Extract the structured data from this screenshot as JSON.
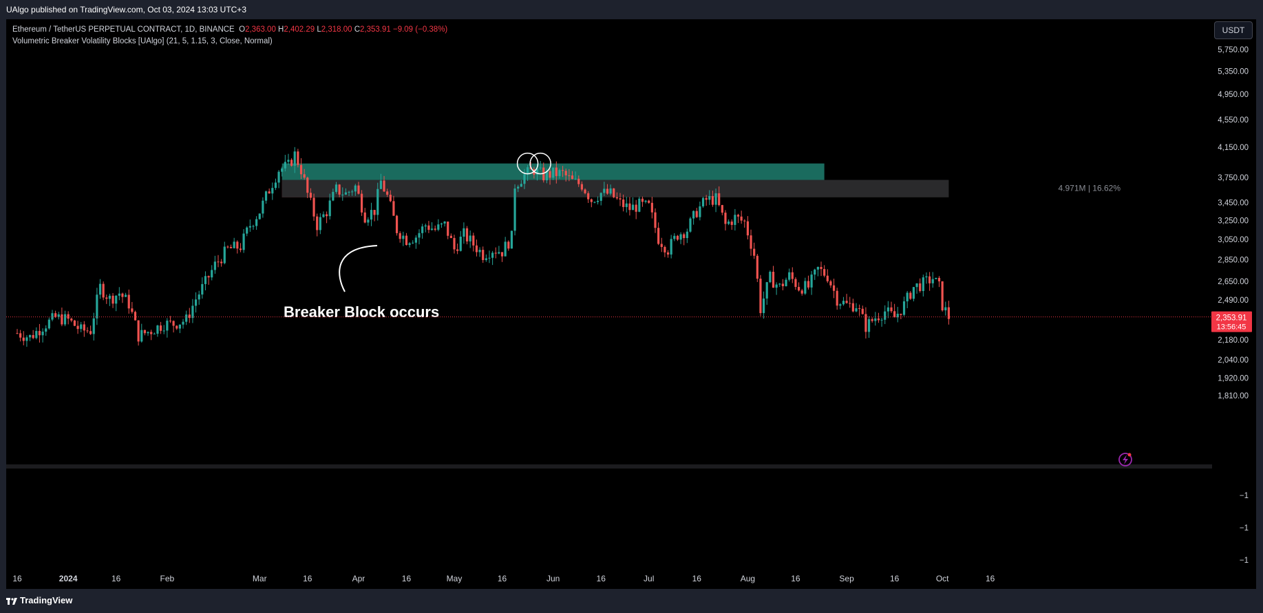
{
  "header": {
    "published_text": "UAlgo published on TradingView.com, Oct 03, 2024 13:03 UTC+3"
  },
  "legend": {
    "symbol": "Ethereum / TetherUS PERPETUAL CONTRACT, 1D, BINANCE",
    "o_label": "O",
    "o_value": "2,363.00",
    "h_label": "H",
    "h_value": "2,402.29",
    "l_label": "L",
    "l_value": "2,318.00",
    "c_label": "C",
    "c_value": "2,353.91",
    "change": "−9.09 (−0.38%)",
    "indicator": "Volumetric Breaker Volatility Blocks [UAlgo] (21, 5, 1.15, 3, Close, Normal)"
  },
  "toolbar": {
    "currency": "USDT"
  },
  "footer": {
    "brand": "TradingView"
  },
  "colors": {
    "up": "#26a69a",
    "down": "#ef5350",
    "teal_block": "#1a6b5e",
    "red_block": "#8f2a33",
    "gray_block": "#2a2a2c",
    "price_tag": "#f23645"
  },
  "chart_data": {
    "type": "candlestick",
    "symbol": "ETHUSDT.P",
    "interval": "1D",
    "y_ticks": [
      "5,750.00",
      "5,350.00",
      "4,950.00",
      "4,550.00",
      "4,150.00",
      "3,750.00",
      "3,450.00",
      "3,250.00",
      "3,050.00",
      "2,850.00",
      "2,650.00",
      "2,490.00",
      "2,180.00",
      "2,040.00",
      "1,920.00",
      "1,810.00"
    ],
    "y_tick_values": [
      5750,
      5350,
      4950,
      4550,
      4150,
      3750,
      3450,
      3250,
      3050,
      2850,
      2650,
      2490,
      2180,
      2040,
      1920,
      1810
    ],
    "y_log_scale": true,
    "x_ticks": [
      {
        "label": "16",
        "date": "2023-12-16"
      },
      {
        "label": "2024",
        "date": "2024-01-01",
        "bold": true
      },
      {
        "label": "16",
        "date": "2024-01-16"
      },
      {
        "label": "Feb",
        "date": "2024-02-01"
      },
      {
        "label": "Mar",
        "date": "2024-03-01"
      },
      {
        "label": "16",
        "date": "2024-03-16"
      },
      {
        "label": "Apr",
        "date": "2024-04-01"
      },
      {
        "label": "16",
        "date": "2024-04-16"
      },
      {
        "label": "May",
        "date": "2024-05-01"
      },
      {
        "label": "16",
        "date": "2024-05-16"
      },
      {
        "label": "Jun",
        "date": "2024-06-01"
      },
      {
        "label": "16",
        "date": "2024-06-16"
      },
      {
        "label": "Jul",
        "date": "2024-07-01"
      },
      {
        "label": "16",
        "date": "2024-07-16"
      },
      {
        "label": "Aug",
        "date": "2024-08-01"
      },
      {
        "label": "16",
        "date": "2024-08-16"
      },
      {
        "label": "Sep",
        "date": "2024-09-01"
      },
      {
        "label": "16",
        "date": "2024-09-16"
      },
      {
        "label": "Oct",
        "date": "2024-10-01"
      },
      {
        "label": "16",
        "date": "2024-10-16"
      }
    ],
    "close_series": [
      [
        "2023-12-16",
        2230
      ],
      [
        "2023-12-20",
        2200
      ],
      [
        "2023-12-24",
        2280
      ],
      [
        "2023-12-28",
        2350
      ],
      [
        "2024-01-01",
        2330
      ],
      [
        "2024-01-05",
        2250
      ],
      [
        "2024-01-08",
        2250
      ],
      [
        "2024-01-11",
        2600
      ],
      [
        "2024-01-14",
        2500
      ],
      [
        "2024-01-17",
        2550
      ],
      [
        "2024-01-20",
        2460
      ],
      [
        "2024-01-23",
        2210
      ],
      [
        "2024-01-27",
        2250
      ],
      [
        "2024-01-31",
        2300
      ],
      [
        "2024-02-03",
        2300
      ],
      [
        "2024-02-07",
        2330
      ],
      [
        "2024-02-10",
        2500
      ],
      [
        "2024-02-13",
        2640
      ],
      [
        "2024-02-16",
        2800
      ],
      [
        "2024-02-20",
        2950
      ],
      [
        "2024-02-24",
        2980
      ],
      [
        "2024-02-27",
        3200
      ],
      [
        "2024-03-01",
        3350
      ],
      [
        "2024-03-04",
        3600
      ],
      [
        "2024-03-07",
        3850
      ],
      [
        "2024-03-10",
        3900
      ],
      [
        "2024-03-12",
        4050
      ],
      [
        "2024-03-14",
        3850
      ],
      [
        "2024-03-16",
        3550
      ],
      [
        "2024-03-19",
        3200
      ],
      [
        "2024-03-22",
        3350
      ],
      [
        "2024-03-25",
        3600
      ],
      [
        "2024-03-28",
        3550
      ],
      [
        "2024-03-31",
        3640
      ],
      [
        "2024-04-03",
        3300
      ],
      [
        "2024-04-06",
        3360
      ],
      [
        "2024-04-08",
        3700
      ],
      [
        "2024-04-10",
        3520
      ],
      [
        "2024-04-13",
        3150
      ],
      [
        "2024-04-16",
        3050
      ],
      [
        "2024-04-19",
        3080
      ],
      [
        "2024-04-22",
        3200
      ],
      [
        "2024-04-25",
        3150
      ],
      [
        "2024-04-28",
        3200
      ],
      [
        "2024-05-01",
        2950
      ],
      [
        "2024-05-04",
        3100
      ],
      [
        "2024-05-07",
        3000
      ],
      [
        "2024-05-10",
        2900
      ],
      [
        "2024-05-13",
        2950
      ],
      [
        "2024-05-16",
        2930
      ],
      [
        "2024-05-19",
        3070
      ],
      [
        "2024-05-20",
        3660
      ],
      [
        "2024-05-23",
        3780
      ],
      [
        "2024-05-26",
        3850
      ],
      [
        "2024-05-29",
        3770
      ],
      [
        "2024-06-01",
        3800
      ],
      [
        "2024-06-04",
        3800
      ],
      [
        "2024-06-07",
        3700
      ],
      [
        "2024-06-10",
        3660
      ],
      [
        "2024-06-13",
        3480
      ],
      [
        "2024-06-16",
        3560
      ],
      [
        "2024-06-19",
        3550
      ],
      [
        "2024-06-22",
        3440
      ],
      [
        "2024-06-25",
        3380
      ],
      [
        "2024-06-28",
        3420
      ],
      [
        "2024-07-01",
        3400
      ],
      [
        "2024-07-04",
        3060
      ],
      [
        "2024-07-07",
        2950
      ],
      [
        "2024-07-10",
        3100
      ],
      [
        "2024-07-13",
        3150
      ],
      [
        "2024-07-16",
        3350
      ],
      [
        "2024-07-19",
        3480
      ],
      [
        "2024-07-22",
        3490
      ],
      [
        "2024-07-25",
        3200
      ],
      [
        "2024-07-28",
        3280
      ],
      [
        "2024-07-31",
        3230
      ],
      [
        "2024-08-03",
        2900
      ],
      [
        "2024-08-05",
        2420
      ],
      [
        "2024-08-08",
        2680
      ],
      [
        "2024-08-11",
        2600
      ],
      [
        "2024-08-14",
        2700
      ],
      [
        "2024-08-17",
        2600
      ],
      [
        "2024-08-20",
        2600
      ],
      [
        "2024-08-23",
        2760
      ],
      [
        "2024-08-26",
        2700
      ],
      [
        "2024-08-29",
        2500
      ],
      [
        "2024-09-01",
        2450
      ],
      [
        "2024-09-04",
        2450
      ],
      [
        "2024-09-07",
        2280
      ],
      [
        "2024-09-10",
        2350
      ],
      [
        "2024-09-13",
        2400
      ],
      [
        "2024-09-16",
        2350
      ],
      [
        "2024-09-19",
        2450
      ],
      [
        "2024-09-22",
        2600
      ],
      [
        "2024-09-25",
        2630
      ],
      [
        "2024-09-28",
        2680
      ],
      [
        "2024-09-30",
        2600
      ],
      [
        "2024-10-01",
        2450
      ],
      [
        "2024-10-03",
        2353.91
      ]
    ],
    "zones": [
      {
        "kind": "bull_breaker",
        "from": "2024-03-08",
        "to": "2024-08-25",
        "top": 3930,
        "bottom": 3720,
        "color": "#1a6b5e"
      },
      {
        "kind": "bear_block",
        "from": "2024-03-08",
        "to": "2024-04-04",
        "top": 3720,
        "bottom": 3510,
        "color": "#8f2a33"
      },
      {
        "kind": "volume_box",
        "from": "2024-03-08",
        "to": "2024-10-03",
        "top": 3720,
        "bottom": 3510,
        "color": "#2a2a2c"
      }
    ],
    "zone_label": "4.971M | 16.62%",
    "annotation": "Breaker Block occurs",
    "circle_markers": [
      {
        "date": "2024-05-24",
        "price": 3930
      },
      {
        "date": "2024-05-28",
        "price": 3930
      }
    ],
    "last_price": "2,353.91",
    "last_price_value": 2353.91,
    "countdown": "13:56:45",
    "sub_pane_ticks": [
      "−1",
      "−1",
      "−1"
    ]
  }
}
